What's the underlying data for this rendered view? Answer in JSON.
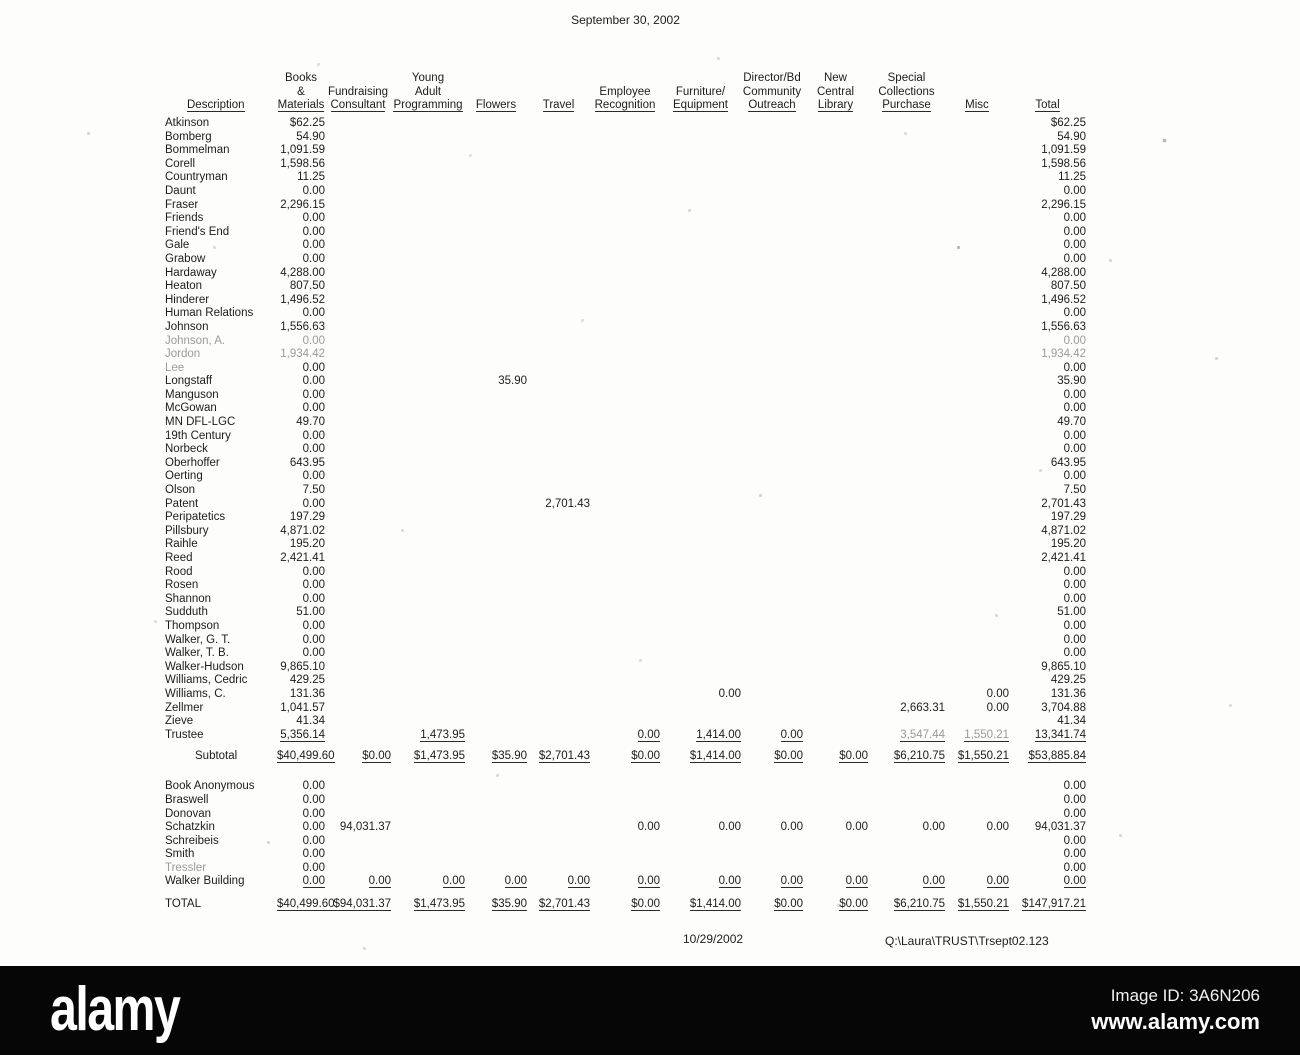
{
  "document": {
    "title": "September 30, 2002",
    "footer_date": "10/29/2002",
    "footer_path": "Q:\\Laura\\TRUST\\Trsept02.123"
  },
  "table": {
    "columns": [
      {
        "key": "description",
        "lines": [
          "Description"
        ]
      },
      {
        "key": "books_materials",
        "lines": [
          "Books",
          "&",
          "Materials"
        ]
      },
      {
        "key": "fundraising_consultant",
        "lines": [
          "Fundraising",
          "Consultant"
        ]
      },
      {
        "key": "young_adult_programming",
        "lines": [
          "Young",
          "Adult",
          "Programming"
        ]
      },
      {
        "key": "flowers",
        "lines": [
          "Flowers"
        ]
      },
      {
        "key": "travel",
        "lines": [
          "Travel"
        ]
      },
      {
        "key": "employee_recognition",
        "lines": [
          "Employee",
          "Recognition"
        ]
      },
      {
        "key": "furniture_equipment",
        "lines": [
          "Furniture/",
          "Equipment"
        ]
      },
      {
        "key": "director_bd_community_outreach",
        "lines": [
          "Director/Bd",
          "Community",
          "Outreach"
        ]
      },
      {
        "key": "new_central_library",
        "lines": [
          "New",
          "Central",
          "Library"
        ]
      },
      {
        "key": "special_collections_purchase",
        "lines": [
          "Special",
          "Collections",
          "Purchase"
        ]
      },
      {
        "key": "misc",
        "lines": [
          "Misc"
        ]
      },
      {
        "key": "total",
        "lines": [
          "Total"
        ]
      }
    ],
    "main_rows": [
      {
        "name": "Atkinson",
        "values": [
          "$62.25",
          "",
          "",
          "",
          "",
          "",
          "",
          "",
          "",
          "",
          "",
          "$62.25"
        ]
      },
      {
        "name": "Bomberg",
        "values": [
          "54.90",
          "",
          "",
          "",
          "",
          "",
          "",
          "",
          "",
          "",
          "",
          "54.90"
        ]
      },
      {
        "name": "Bommelman",
        "values": [
          "1,091.59",
          "",
          "",
          "",
          "",
          "",
          "",
          "",
          "",
          "",
          "",
          "1,091.59"
        ]
      },
      {
        "name": "Corell",
        "values": [
          "1,598.56",
          "",
          "",
          "",
          "",
          "",
          "",
          "",
          "",
          "",
          "",
          "1,598.56"
        ]
      },
      {
        "name": "Countryman",
        "values": [
          "11.25",
          "",
          "",
          "",
          "",
          "",
          "",
          "",
          "",
          "",
          "",
          "11.25"
        ]
      },
      {
        "name": "Daunt",
        "values": [
          "0.00",
          "",
          "",
          "",
          "",
          "",
          "",
          "",
          "",
          "",
          "",
          "0.00"
        ]
      },
      {
        "name": "Fraser",
        "values": [
          "2,296.15",
          "",
          "",
          "",
          "",
          "",
          "",
          "",
          "",
          "",
          "",
          "2,296.15"
        ]
      },
      {
        "name": "Friends",
        "values": [
          "0.00",
          "",
          "",
          "",
          "",
          "",
          "",
          "",
          "",
          "",
          "",
          "0.00"
        ]
      },
      {
        "name": "Friend's End",
        "values": [
          "0.00",
          "",
          "",
          "",
          "",
          "",
          "",
          "",
          "",
          "",
          "",
          "0.00"
        ]
      },
      {
        "name": "Gale",
        "values": [
          "0.00",
          "",
          "",
          "",
          "",
          "",
          "",
          "",
          "",
          "",
          "",
          "0.00"
        ]
      },
      {
        "name": "Grabow",
        "values": [
          "0.00",
          "",
          "",
          "",
          "",
          "",
          "",
          "",
          "",
          "",
          "",
          "0.00"
        ]
      },
      {
        "name": "Hardaway",
        "values": [
          "4,288.00",
          "",
          "",
          "",
          "",
          "",
          "",
          "",
          "",
          "",
          "",
          "4,288.00"
        ]
      },
      {
        "name": "Heaton",
        "values": [
          "807.50",
          "",
          "",
          "",
          "",
          "",
          "",
          "",
          "",
          "",
          "",
          "807.50"
        ]
      },
      {
        "name": "Hinderer",
        "values": [
          "1,496.52",
          "",
          "",
          "",
          "",
          "",
          "",
          "",
          "",
          "",
          "",
          "1,496.52"
        ]
      },
      {
        "name": "Human Relations",
        "values": [
          "0.00",
          "",
          "",
          "",
          "",
          "",
          "",
          "",
          "",
          "",
          "",
          "0.00"
        ]
      },
      {
        "name": "Johnson",
        "values": [
          "1,556.63",
          "",
          "",
          "",
          "",
          "",
          "",
          "",
          "",
          "",
          "",
          "1,556.63"
        ]
      },
      {
        "name": "Johnson, A.",
        "values": [
          "0.00",
          "",
          "",
          "",
          "",
          "",
          "",
          "",
          "",
          "",
          "",
          "0.00"
        ],
        "faded": true
      },
      {
        "name": "Jordon",
        "values": [
          "1,934.42",
          "",
          "",
          "",
          "",
          "",
          "",
          "",
          "",
          "",
          "",
          "1,934.42"
        ],
        "faded": true
      },
      {
        "name": "Lee",
        "values": [
          "0.00",
          "",
          "",
          "",
          "",
          "",
          "",
          "",
          "",
          "",
          "",
          "0.00"
        ],
        "faded_name": true
      },
      {
        "name": "Longstaff",
        "values": [
          "0.00",
          "",
          "",
          "35.90",
          "",
          "",
          "",
          "",
          "",
          "",
          "",
          "35.90"
        ]
      },
      {
        "name": "Manguson",
        "values": [
          "0.00",
          "",
          "",
          "",
          "",
          "",
          "",
          "",
          "",
          "",
          "",
          "0.00"
        ]
      },
      {
        "name": "McGowan",
        "values": [
          "0.00",
          "",
          "",
          "",
          "",
          "",
          "",
          "",
          "",
          "",
          "",
          "0.00"
        ]
      },
      {
        "name": "MN DFL-LGC",
        "values": [
          "49.70",
          "",
          "",
          "",
          "",
          "",
          "",
          "",
          "",
          "",
          "",
          "49.70"
        ]
      },
      {
        "name": "19th Century",
        "values": [
          "0.00",
          "",
          "",
          "",
          "",
          "",
          "",
          "",
          "",
          "",
          "",
          "0.00"
        ]
      },
      {
        "name": "Norbeck",
        "values": [
          "0.00",
          "",
          "",
          "",
          "",
          "",
          "",
          "",
          "",
          "",
          "",
          "0.00"
        ]
      },
      {
        "name": "Oberhoffer",
        "values": [
          "643.95",
          "",
          "",
          "",
          "",
          "",
          "",
          "",
          "",
          "",
          "",
          "643.95"
        ]
      },
      {
        "name": "Oerting",
        "values": [
          "0.00",
          "",
          "",
          "",
          "",
          "",
          "",
          "",
          "",
          "",
          "",
          "0.00"
        ]
      },
      {
        "name": "Olson",
        "values": [
          "7.50",
          "",
          "",
          "",
          "",
          "",
          "",
          "",
          "",
          "",
          "",
          "7.50"
        ]
      },
      {
        "name": "Patent",
        "values": [
          "0.00",
          "",
          "",
          "",
          "2,701.43",
          "",
          "",
          "",
          "",
          "",
          "",
          "2,701.43"
        ]
      },
      {
        "name": "Peripatetics",
        "values": [
          "197.29",
          "",
          "",
          "",
          "",
          "",
          "",
          "",
          "",
          "",
          "",
          "197.29"
        ]
      },
      {
        "name": "Pillsbury",
        "values": [
          "4,871.02",
          "",
          "",
          "",
          "",
          "",
          "",
          "",
          "",
          "",
          "",
          "4,871.02"
        ]
      },
      {
        "name": "Raihle",
        "values": [
          "195.20",
          "",
          "",
          "",
          "",
          "",
          "",
          "",
          "",
          "",
          "",
          "195.20"
        ]
      },
      {
        "name": "Reed",
        "values": [
          "2,421.41",
          "",
          "",
          "",
          "",
          "",
          "",
          "",
          "",
          "",
          "",
          "2,421.41"
        ]
      },
      {
        "name": "Rood",
        "values": [
          "0.00",
          "",
          "",
          "",
          "",
          "",
          "",
          "",
          "",
          "",
          "",
          "0.00"
        ]
      },
      {
        "name": "Rosen",
        "values": [
          "0.00",
          "",
          "",
          "",
          "",
          "",
          "",
          "",
          "",
          "",
          "",
          "0.00"
        ]
      },
      {
        "name": "Shannon",
        "values": [
          "0.00",
          "",
          "",
          "",
          "",
          "",
          "",
          "",
          "",
          "",
          "",
          "0.00"
        ]
      },
      {
        "name": "Sudduth",
        "values": [
          "51.00",
          "",
          "",
          "",
          "",
          "",
          "",
          "",
          "",
          "",
          "",
          "51.00"
        ]
      },
      {
        "name": "Thompson",
        "values": [
          "0.00",
          "",
          "",
          "",
          "",
          "",
          "",
          "",
          "",
          "",
          "",
          "0.00"
        ]
      },
      {
        "name": "Walker, G. T.",
        "values": [
          "0.00",
          "",
          "",
          "",
          "",
          "",
          "",
          "",
          "",
          "",
          "",
          "0.00"
        ]
      },
      {
        "name": "Walker, T. B.",
        "values": [
          "0.00",
          "",
          "",
          "",
          "",
          "",
          "",
          "",
          "",
          "",
          "",
          "0.00"
        ]
      },
      {
        "name": "Walker-Hudson",
        "values": [
          "9,865.10",
          "",
          "",
          "",
          "",
          "",
          "",
          "",
          "",
          "",
          "",
          "9,865.10"
        ]
      },
      {
        "name": "Williams, Cedric",
        "values": [
          "429.25",
          "",
          "",
          "",
          "",
          "",
          "",
          "",
          "",
          "",
          "",
          "429.25"
        ]
      },
      {
        "name": "Williams, C.",
        "values": [
          "131.36",
          "",
          "",
          "",
          "",
          "",
          "0.00",
          "",
          "",
          "",
          "0.00",
          "131.36"
        ]
      },
      {
        "name": "Zellmer",
        "values": [
          "1,041.57",
          "",
          "",
          "",
          "",
          "",
          "",
          "",
          "",
          "2,663.31",
          "0.00",
          "3,704.88"
        ]
      },
      {
        "name": "Zieve",
        "values": [
          "41.34",
          "",
          "",
          "",
          "",
          "",
          "",
          "",
          "",
          "",
          "",
          "41.34"
        ]
      },
      {
        "name": "Trustee",
        "values": [
          "5,356.14",
          "",
          "1,473.95",
          "",
          "",
          "0.00",
          "1,414.00",
          "0.00",
          "",
          "3,547.44",
          "1,550.21",
          "13,341.74"
        ],
        "underline": true,
        "faded_cols": [
          9,
          10
        ]
      }
    ],
    "subtotal_row": {
      "label": "Subtotal",
      "values": [
        "$40,499.60",
        "$0.00",
        "$1,473.95",
        "$35.90",
        "$2,701.43",
        "$0.00",
        "$1,414.00",
        "$0.00",
        "$0.00",
        "$6,210.75",
        "$1,550.21",
        "$53,885.84"
      ],
      "underline": true
    },
    "second_rows": [
      {
        "name": "Book Anonymous",
        "values": [
          "0.00",
          "",
          "",
          "",
          "",
          "",
          "",
          "",
          "",
          "",
          "",
          "0.00"
        ]
      },
      {
        "name": "Braswell",
        "values": [
          "0.00",
          "",
          "",
          "",
          "",
          "",
          "",
          "",
          "",
          "",
          "",
          "0.00"
        ]
      },
      {
        "name": "Donovan",
        "values": [
          "0.00",
          "",
          "",
          "",
          "",
          "",
          "",
          "",
          "",
          "",
          "",
          "0.00"
        ]
      },
      {
        "name": "Schatzkin",
        "values": [
          "0.00",
          "94,031.37",
          "",
          "",
          "",
          "0.00",
          "0.00",
          "0.00",
          "0.00",
          "0.00",
          "0.00",
          "94,031.37"
        ]
      },
      {
        "name": "Schreibeis",
        "values": [
          "0.00",
          "",
          "",
          "",
          "",
          "",
          "",
          "",
          "",
          "",
          "",
          "0.00"
        ]
      },
      {
        "name": "Smith",
        "values": [
          "0.00",
          "",
          "",
          "",
          "",
          "",
          "",
          "",
          "",
          "",
          "",
          "0.00"
        ]
      },
      {
        "name": "Tressler",
        "values": [
          "0.00",
          "",
          "",
          "",
          "",
          "",
          "",
          "",
          "",
          "",
          "",
          "0.00"
        ],
        "faded_name": true
      },
      {
        "name": "Walker Building",
        "values": [
          "0.00",
          "0.00",
          "0.00",
          "0.00",
          "0.00",
          "0.00",
          "0.00",
          "0.00",
          "0.00",
          "0.00",
          "0.00",
          "0.00"
        ],
        "underline": true
      }
    ],
    "total_row": {
      "label": "TOTAL",
      "values": [
        "$40,499.60",
        "$94,031.37",
        "$1,473.95",
        "$35.90",
        "$2,701.43",
        "$0.00",
        "$1,414.00",
        "$0.00",
        "$0.00",
        "$6,210.75",
        "$1,550.21",
        "$147,917.21"
      ],
      "underline": true
    }
  },
  "watermark": {
    "brand": "alamy",
    "image_id": "Image ID: 3A6N206",
    "url": "www.alamy.com",
    "bar_color": "#060606"
  }
}
